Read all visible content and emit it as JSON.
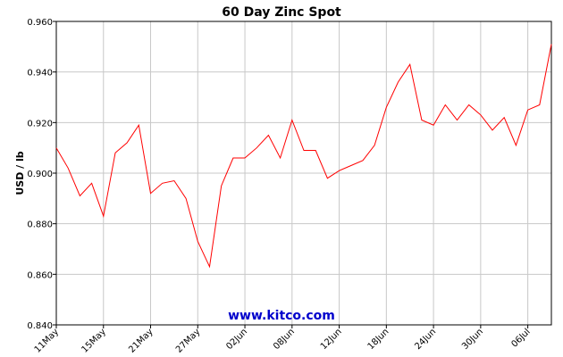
{
  "chart_data": {
    "type": "line",
    "title": "60 Day Zinc Spot",
    "xlabel": "",
    "ylabel": "USD / lb",
    "ylim": [
      0.84,
      0.96
    ],
    "yticks": [
      "0.960",
      "0.940",
      "0.920",
      "0.900",
      "0.880",
      "0.860",
      "0.840"
    ],
    "ytick_values": [
      0.96,
      0.94,
      0.92,
      0.9,
      0.88,
      0.86,
      0.84
    ],
    "xticks": [
      {
        "label": "11May",
        "day": 0
      },
      {
        "label": "15May",
        "day": 4
      },
      {
        "label": "21May",
        "day": 8
      },
      {
        "label": "27May",
        "day": 12
      },
      {
        "label": "02Jun",
        "day": 16
      },
      {
        "label": "08Jun",
        "day": 20
      },
      {
        "label": "12Jun",
        "day": 24
      },
      {
        "label": "18Jun",
        "day": 28
      },
      {
        "label": "24Jun",
        "day": 32
      },
      {
        "label": "30Jun",
        "day": 36
      },
      {
        "label": "06Jul",
        "day": 40
      }
    ],
    "grid": true,
    "line_color": "#ff0000",
    "watermark": "www.kitco.com",
    "series": [
      {
        "x": [
          0,
          1,
          2,
          3,
          4,
          5,
          6,
          7,
          8,
          9,
          10,
          11,
          12,
          13,
          14,
          15,
          16,
          17,
          18,
          19,
          20,
          21,
          22,
          23,
          24,
          25,
          26,
          27,
          28,
          29,
          30,
          31,
          32,
          33,
          34,
          35,
          36,
          37,
          38,
          39,
          40,
          41,
          42
        ],
        "values": [
          0.91,
          0.902,
          0.891,
          0.896,
          0.883,
          0.908,
          0.912,
          0.919,
          0.892,
          0.896,
          0.897,
          0.89,
          0.873,
          0.863,
          0.895,
          0.906,
          0.906,
          0.91,
          0.915,
          0.906,
          0.921,
          0.909,
          0.909,
          0.898,
          0.901,
          0.903,
          0.905,
          0.911,
          0.926,
          0.936,
          0.943,
          0.921,
          0.919,
          0.927,
          0.921,
          0.927,
          0.923,
          0.917,
          0.922,
          0.911,
          0.925,
          0.927,
          0.951
        ]
      }
    ]
  }
}
